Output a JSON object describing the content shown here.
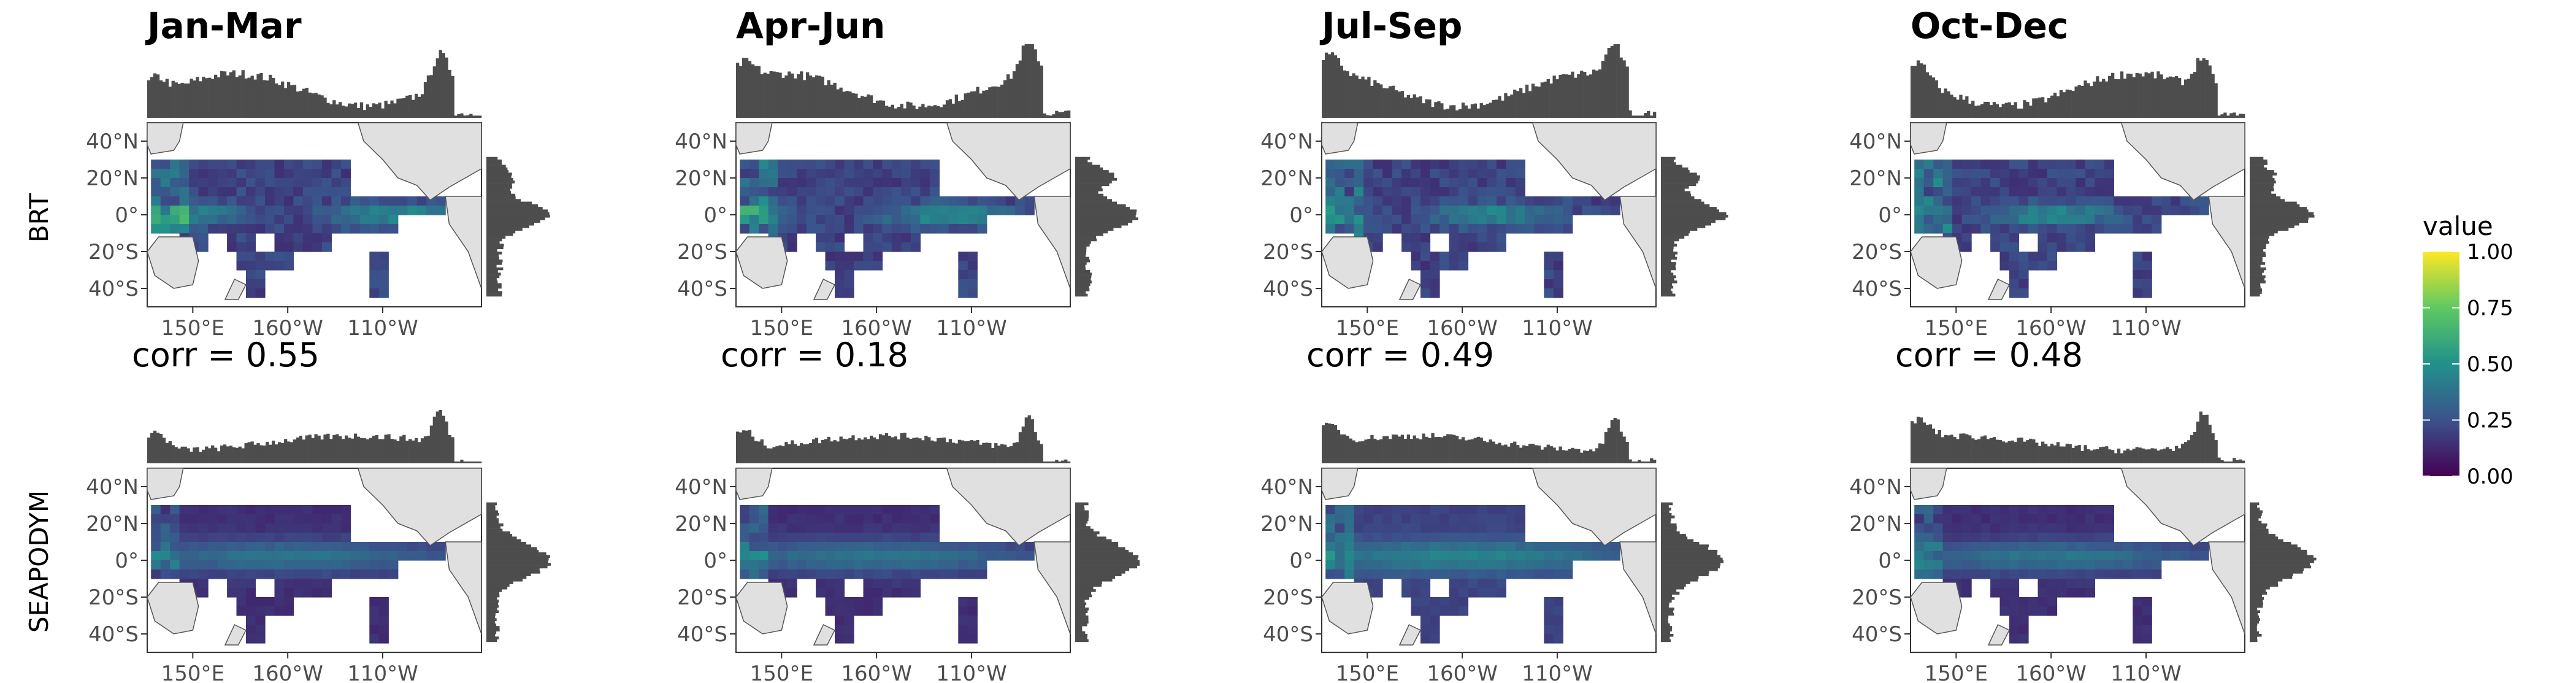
{
  "chart_data": {
    "type": "heatmap",
    "title": "",
    "columns": [
      "Jan-Mar",
      "Apr-Jun",
      "Jul-Sep",
      "Oct-Dec"
    ],
    "rows": [
      "BRT",
      "SEAPODYM"
    ],
    "x_ticks": [
      "150°E",
      "160°W",
      "110°W"
    ],
    "y_ticks": [
      "40°N",
      "20°N",
      "0°",
      "20°S",
      "40°S"
    ],
    "y_tick_values": [
      40,
      20,
      0,
      -20,
      -40
    ],
    "x_tick_values": [
      150,
      200,
      250
    ],
    "xlim": [
      126,
      302
    ],
    "ylim": [
      -50,
      50
    ],
    "correlations": [
      "corr = 0.55",
      "corr = 0.18",
      "corr = 0.49",
      "corr = 0.48"
    ],
    "legend": {
      "title": "value",
      "ticks": [
        "1.00",
        "0.75",
        "0.50",
        "0.25",
        "0.00"
      ],
      "tick_values": [
        1.0,
        0.75,
        0.5,
        0.25,
        0.0
      ],
      "range": [
        0,
        1
      ],
      "colormap": "viridis"
    },
    "colors": {
      "viridis": [
        "#440154",
        "#3b528b",
        "#21918c",
        "#5ec962",
        "#fde725"
      ],
      "land": "#e0e0e0",
      "histogram": "#4d4d4d"
    },
    "marginals": "histograms of value along longitude (top) and latitude (right)"
  }
}
